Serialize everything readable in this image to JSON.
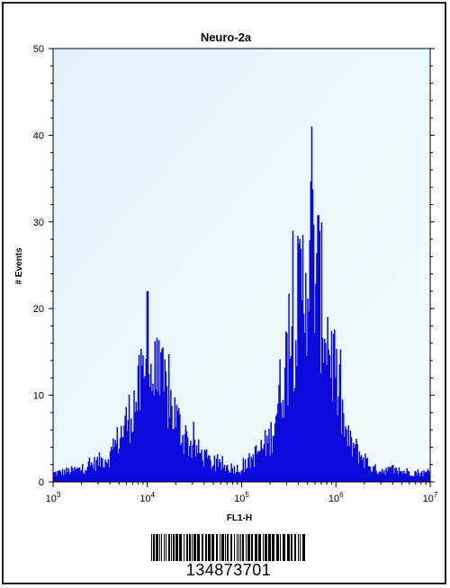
{
  "chart_data": {
    "type": "histogram",
    "title": "Neuro-2a",
    "xlabel": "FL1-H",
    "ylabel": "# Events",
    "x_scale": "log",
    "xlim": [
      1000,
      10000000
    ],
    "ylim": [
      0,
      50
    ],
    "y_ticks": [
      0,
      10,
      20,
      30,
      40,
      50
    ],
    "x_ticks": [
      {
        "value": 1000,
        "base": "10",
        "exp": "3"
      },
      {
        "value": 10000,
        "base": "10",
        "exp": "4"
      },
      {
        "value": 100000,
        "base": "10",
        "exp": "5"
      },
      {
        "value": 1000000,
        "base": "10",
        "exp": "6"
      },
      {
        "value": 10000000,
        "base": "10",
        "exp": "7"
      }
    ],
    "grid": false,
    "plot_background": "#e8f6fb",
    "fill_color": "#0a0adc",
    "series": [
      {
        "peaks": [
          {
            "x": 10000,
            "count": 22
          },
          {
            "x": 550000,
            "count": 41
          }
        ],
        "approx_profile": [
          {
            "x": 1000,
            "count": 1
          },
          {
            "x": 2000,
            "count": 1.5
          },
          {
            "x": 4000,
            "count": 3
          },
          {
            "x": 6000,
            "count": 7
          },
          {
            "x": 10000,
            "count": 13
          },
          {
            "x": 15000,
            "count": 11
          },
          {
            "x": 25000,
            "count": 5
          },
          {
            "x": 50000,
            "count": 2
          },
          {
            "x": 100000,
            "count": 1.5
          },
          {
            "x": 200000,
            "count": 5
          },
          {
            "x": 350000,
            "count": 18
          },
          {
            "x": 550000,
            "count": 28
          },
          {
            "x": 800000,
            "count": 18
          },
          {
            "x": 1300000,
            "count": 5
          },
          {
            "x": 2500000,
            "count": 1.5
          },
          {
            "x": 10000000,
            "count": 1
          }
        ]
      }
    ]
  },
  "barcode": {
    "number": "134873701"
  }
}
